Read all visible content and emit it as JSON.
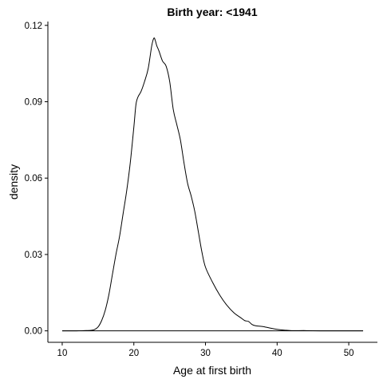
{
  "chart_data": {
    "type": "line",
    "title": "Birth year: <1941",
    "xlabel": "Age at first birth",
    "ylabel": "density",
    "xlim": [
      8,
      54
    ],
    "ylim": [
      -0.0045,
      0.1215
    ],
    "x_ticks": [
      10,
      20,
      30,
      40,
      50
    ],
    "y_ticks": [
      0.0,
      0.03,
      0.06,
      0.09,
      0.12
    ],
    "y_tick_labels": [
      "0.00",
      "0.03",
      "0.06",
      "0.09",
      "0.12"
    ],
    "grid": false,
    "legend": "none",
    "series": [
      {
        "x": [
          10,
          12,
          13,
          14,
          14.5,
          15,
          15.5,
          16,
          16.5,
          17,
          17.5,
          18,
          18.5,
          19,
          19.5,
          20,
          20.3,
          20.6,
          21,
          21.5,
          22,
          22.5,
          22.8,
          23,
          23.2,
          23.5,
          24,
          24.5,
          25,
          25.5,
          26,
          26.5,
          27,
          27.5,
          28,
          28.5,
          29,
          29.5,
          30,
          31,
          32,
          33,
          34,
          35,
          35.5,
          36,
          36.5,
          37,
          38,
          39,
          40,
          41,
          42,
          44,
          46,
          48,
          50,
          52
        ],
        "y": [
          0,
          0,
          0.0001,
          0.0002,
          0.0005,
          0.0015,
          0.004,
          0.008,
          0.014,
          0.022,
          0.03,
          0.037,
          0.046,
          0.055,
          0.066,
          0.08,
          0.089,
          0.092,
          0.094,
          0.098,
          0.103,
          0.112,
          0.115,
          0.114,
          0.112,
          0.11,
          0.106,
          0.104,
          0.098,
          0.087,
          0.081,
          0.075,
          0.066,
          0.058,
          0.053,
          0.047,
          0.039,
          0.031,
          0.025,
          0.019,
          0.014,
          0.01,
          0.007,
          0.005,
          0.004,
          0.0037,
          0.0025,
          0.002,
          0.0017,
          0.0011,
          0.0006,
          0.0003,
          0.0001,
          0.0001,
          0,
          0,
          0,
          0
        ]
      }
    ]
  }
}
